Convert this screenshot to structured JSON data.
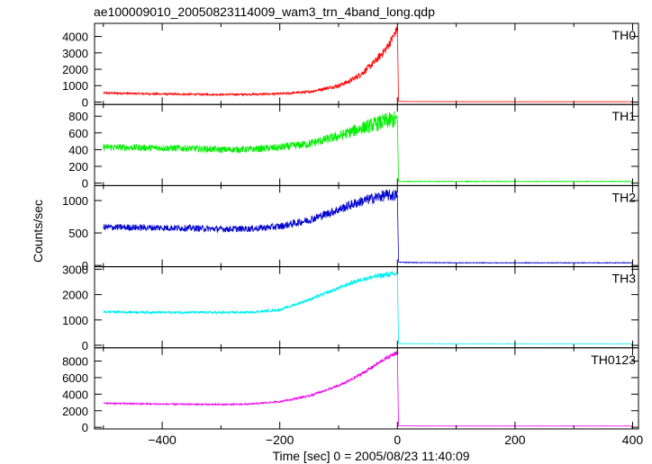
{
  "chart_data": {
    "type": "line",
    "title": "ae100009010_20050823114009_wam3_trn_4band_long.qdp",
    "xlabel": "Time [sec] 0 = 2005/08/23 11:40:09",
    "ylabel": "Counts/sec",
    "xlim": [
      -515,
      410
    ],
    "xticks": [
      -400,
      -200,
      0,
      200,
      400
    ],
    "grid": false,
    "panels": [
      {
        "name": "TH0",
        "color": "#ff0000",
        "ylim": [
          -150,
          4800
        ],
        "yticks": [
          0,
          1000,
          2000,
          3000,
          4000
        ],
        "x": [
          -500,
          -450,
          -400,
          -350,
          -300,
          -250,
          -200,
          -150,
          -100,
          -80,
          -60,
          -40,
          -20,
          -10,
          -2,
          0,
          2,
          20,
          100,
          200,
          300,
          400
        ],
        "values": [
          550,
          520,
          490,
          470,
          460,
          470,
          500,
          620,
          1000,
          1300,
          1750,
          2400,
          3200,
          3800,
          4350,
          4400,
          40,
          30,
          25,
          20,
          20,
          20
        ],
        "noise": [
          60,
          60,
          60,
          60,
          60,
          60,
          70,
          80,
          120,
          150,
          180,
          220,
          260,
          280,
          300,
          0,
          5,
          5,
          5,
          5,
          5,
          5
        ]
      },
      {
        "name": "TH1",
        "color": "#00ee00",
        "ylim": [
          -30,
          940
        ],
        "yticks": [
          0,
          200,
          400,
          600,
          800
        ],
        "x": [
          -500,
          -450,
          -400,
          -350,
          -300,
          -250,
          -200,
          -150,
          -100,
          -80,
          -60,
          -40,
          -20,
          -2,
          0,
          2,
          20,
          100,
          200,
          300,
          400
        ],
        "values": [
          430,
          425,
          420,
          415,
          400,
          405,
          425,
          470,
          560,
          610,
          660,
          700,
          740,
          760,
          760,
          20,
          20,
          20,
          20,
          20,
          20
        ],
        "noise": [
          40,
          40,
          40,
          40,
          40,
          40,
          45,
          50,
          60,
          70,
          80,
          90,
          100,
          110,
          0,
          4,
          4,
          4,
          4,
          4,
          4
        ]
      },
      {
        "name": "TH2",
        "color": "#0000cc",
        "ylim": [
          -20,
          1230
        ],
        "yticks": [
          0,
          500,
          1000
        ],
        "x": [
          -500,
          -450,
          -400,
          -350,
          -300,
          -250,
          -200,
          -150,
          -100,
          -80,
          -60,
          -40,
          -20,
          -2,
          0,
          2,
          20,
          100,
          200,
          300,
          400
        ],
        "values": [
          590,
          585,
          580,
          575,
          560,
          565,
          600,
          700,
          860,
          930,
          990,
          1040,
          1080,
          1080,
          1080,
          50,
          45,
          40,
          40,
          40,
          40
        ],
        "noise": [
          50,
          50,
          50,
          50,
          50,
          50,
          55,
          60,
          70,
          75,
          80,
          85,
          90,
          95,
          0,
          5,
          5,
          5,
          5,
          5,
          5
        ]
      },
      {
        "name": "TH3",
        "color": "#00eeee",
        "ylim": [
          -100,
          3100
        ],
        "yticks": [
          0,
          1000,
          2000,
          3000
        ],
        "x": [
          -500,
          -450,
          -400,
          -350,
          -300,
          -250,
          -200,
          -150,
          -100,
          -80,
          -60,
          -40,
          -20,
          -2,
          0,
          2,
          20,
          100,
          200,
          300,
          400
        ],
        "values": [
          1320,
          1310,
          1300,
          1300,
          1290,
          1300,
          1400,
          1800,
          2250,
          2450,
          2600,
          2700,
          2780,
          2820,
          2820,
          70,
          65,
          60,
          60,
          60,
          60
        ],
        "noise": [
          50,
          50,
          50,
          50,
          50,
          50,
          55,
          60,
          70,
          80,
          90,
          100,
          110,
          110,
          0,
          5,
          5,
          5,
          5,
          5,
          5
        ]
      },
      {
        "name": "TH0123",
        "color": "#ee00ee",
        "ylim": [
          -200,
          9600
        ],
        "yticks": [
          0,
          2000,
          4000,
          6000,
          8000
        ],
        "x": [
          -500,
          -450,
          -400,
          -350,
          -300,
          -250,
          -200,
          -150,
          -100,
          -80,
          -60,
          -40,
          -20,
          -2,
          0,
          2,
          20,
          100,
          200,
          300,
          400
        ],
        "values": [
          2900,
          2850,
          2800,
          2780,
          2750,
          2800,
          3100,
          3800,
          5000,
          5700,
          6500,
          7400,
          8300,
          9000,
          9000,
          180,
          160,
          150,
          150,
          150,
          150
        ],
        "noise": [
          90,
          90,
          90,
          90,
          90,
          90,
          100,
          120,
          150,
          170,
          190,
          210,
          230,
          250,
          0,
          10,
          10,
          10,
          10,
          10,
          10
        ]
      }
    ]
  }
}
